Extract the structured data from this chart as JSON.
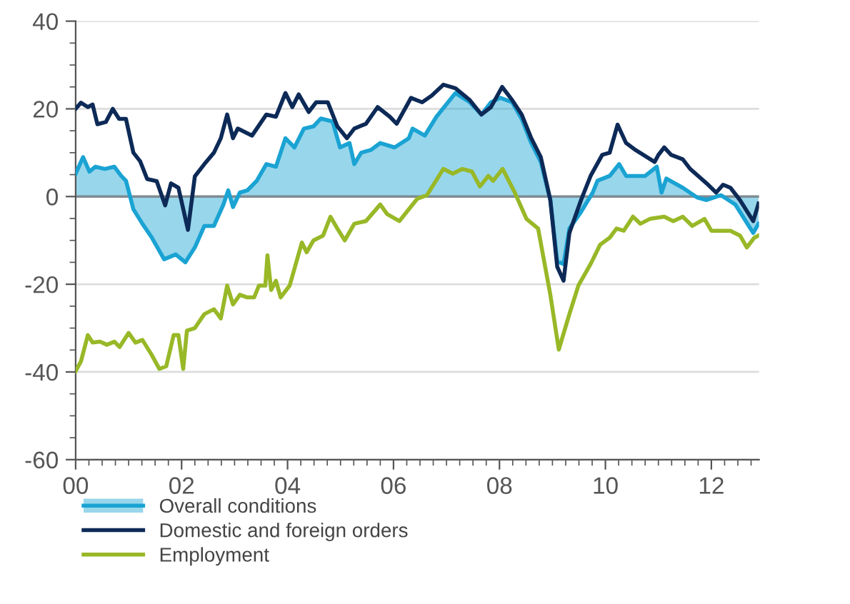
{
  "chart_data": {
    "type": "line",
    "xlim": [
      0,
      12.9
    ],
    "xticks": [
      {
        "value": 0,
        "label": "00"
      },
      {
        "value": 2,
        "label": "02"
      },
      {
        "value": 4,
        "label": "04"
      },
      {
        "value": 6,
        "label": "06"
      },
      {
        "value": 8,
        "label": "08"
      },
      {
        "value": 10,
        "label": "10"
      },
      {
        "value": 12,
        "label": "12"
      }
    ],
    "ylim": [
      -60,
      40
    ],
    "yticks": [
      -60,
      -40,
      -20,
      0,
      20,
      40
    ],
    "grid": "y",
    "legend": "bottom",
    "ref_lines": [
      {
        "axis": "y",
        "value": 0,
        "color": "#7f8c93"
      }
    ],
    "series": [
      {
        "name": "Overall conditions",
        "type": "area",
        "color": "#1aa3d3",
        "x": [
          0,
          0.14,
          0.26,
          0.37,
          0.55,
          0.73,
          0.86,
          0.95,
          1.09,
          1.26,
          1.44,
          1.67,
          1.89,
          2.07,
          2.25,
          2.43,
          2.61,
          2.79,
          2.88,
          2.97,
          3.1,
          3.24,
          3.42,
          3.6,
          3.78,
          3.96,
          4.13,
          4.31,
          4.49,
          4.63,
          4.85,
          4.99,
          5.17,
          5.26,
          5.39,
          5.57,
          5.75,
          6.02,
          6.29,
          6.36,
          6.59,
          6.81,
          7.17,
          7.44,
          7.66,
          7.84,
          8.02,
          8.24,
          8.42,
          8.6,
          8.78,
          8.96,
          9.09,
          9.21,
          9.32,
          9.54,
          9.76,
          9.85,
          10.08,
          10.26,
          10.39,
          10.75,
          10.97,
          11.06,
          11.15,
          11.46,
          11.73,
          11.91,
          12.18,
          12.45,
          12.79,
          12.89
        ],
        "values": [
          5.2,
          9,
          5.7,
          6.8,
          6.3,
          6.8,
          4.7,
          3.6,
          -2.9,
          -6.2,
          -9.4,
          -14.3,
          -13.2,
          -15,
          -11.6,
          -6.7,
          -6.7,
          -1.8,
          1.4,
          -2.4,
          0.9,
          1.4,
          3.6,
          7.4,
          6.8,
          13.3,
          11.2,
          15.5,
          16,
          17.8,
          17.1,
          11.2,
          12.2,
          7.4,
          10,
          10.6,
          12.2,
          11.2,
          13.3,
          15.5,
          13.9,
          18.2,
          23.6,
          21.5,
          18.7,
          21.5,
          22.5,
          21.5,
          17.7,
          12.2,
          7.9,
          -0.8,
          -14.8,
          -15.4,
          -7.3,
          -3.5,
          0.9,
          3.6,
          4.7,
          7.4,
          4.7,
          4.7,
          6.8,
          0.9,
          4.1,
          2,
          -0.2,
          -0.8,
          0.3,
          -1.8,
          -8.3,
          -6.2
        ]
      },
      {
        "name": "Domestic and foreign orders",
        "color": "#0d2a57",
        "x": [
          0,
          0.1,
          0.23,
          0.32,
          0.41,
          0.57,
          0.7,
          0.82,
          0.95,
          1.09,
          1.22,
          1.35,
          1.53,
          1.69,
          1.8,
          1.94,
          2.12,
          2.25,
          2.43,
          2.61,
          2.74,
          2.86,
          2.97,
          3.06,
          3.33,
          3.6,
          3.78,
          3.96,
          4.09,
          4.21,
          4.4,
          4.54,
          4.76,
          4.94,
          5.12,
          5.26,
          5.48,
          5.7,
          5.93,
          6.06,
          6.33,
          6.54,
          6.72,
          6.94,
          7.17,
          7.44,
          7.66,
          7.84,
          8.05,
          8.24,
          8.42,
          8.6,
          8.78,
          8.96,
          9.09,
          9.21,
          9.32,
          9.54,
          9.72,
          9.94,
          10.08,
          10.23,
          10.39,
          10.57,
          10.93,
          11.0,
          11.11,
          11.24,
          11.46,
          11.6,
          11.91,
          12.09,
          12.22,
          12.36,
          12.54,
          12.79,
          12.89
        ],
        "values": [
          20,
          21.4,
          20.4,
          21,
          16.5,
          17,
          20,
          17.7,
          17.7,
          10,
          8,
          4,
          3.5,
          -2,
          3,
          2,
          -7.6,
          4.6,
          7.4,
          10,
          13.3,
          18.7,
          13.3,
          15.5,
          13.9,
          18.7,
          18.2,
          23.6,
          20.4,
          23.3,
          19.3,
          21.5,
          21.5,
          16,
          13.3,
          15.5,
          16.6,
          20.4,
          18.2,
          16.6,
          22.5,
          21.5,
          23,
          25.5,
          24.7,
          22,
          18.7,
          20.4,
          25,
          22,
          18.7,
          13.3,
          9,
          -0.8,
          -16,
          -19.2,
          -8.3,
          -0.8,
          4.7,
          9.5,
          10,
          16.4,
          12.2,
          10.6,
          7.9,
          9.5,
          11.2,
          9.5,
          8.5,
          6.3,
          3,
          0.9,
          2.7,
          2,
          -0.8,
          -5.6,
          -1.6
        ]
      },
      {
        "name": "Employment",
        "color": "#98b827",
        "x": [
          0,
          0.1,
          0.23,
          0.32,
          0.46,
          0.59,
          0.73,
          0.83,
          1.0,
          1.13,
          1.26,
          1.43,
          1.58,
          1.71,
          1.85,
          1.94,
          2.03,
          2.1,
          2.25,
          2.43,
          2.61,
          2.74,
          2.86,
          2.97,
          3.1,
          3.24,
          3.37,
          3.46,
          3.58,
          3.62,
          3.69,
          3.78,
          3.87,
          4.04,
          4.27,
          4.36,
          4.49,
          4.67,
          4.81,
          4.94,
          5.08,
          5.26,
          5.48,
          5.75,
          5.88,
          6.11,
          6.29,
          6.45,
          6.63,
          6.77,
          6.94,
          7.12,
          7.3,
          7.48,
          7.63,
          7.79,
          7.88,
          8.06,
          8.29,
          8.51,
          8.73,
          8.96,
          9.12,
          9.32,
          9.49,
          9.72,
          9.9,
          10.08,
          10.21,
          10.345,
          10.52,
          10.66,
          10.84,
          11.11,
          11.28,
          11.46,
          11.64,
          11.87,
          12.0,
          12.36,
          12.54,
          12.67,
          12.81,
          12.89
        ],
        "values": [
          -39.8,
          -37.6,
          -31.6,
          -33.3,
          -33.1,
          -33.8,
          -33.1,
          -34.3,
          -31.1,
          -33.3,
          -32.7,
          -36,
          -39.3,
          -38.7,
          -31.6,
          -31.6,
          -39.3,
          -30.6,
          -30,
          -26.8,
          -25.7,
          -27.8,
          -20.3,
          -24.6,
          -22.4,
          -23,
          -23,
          -20.3,
          -20.3,
          -13.4,
          -21.3,
          -19.2,
          -23,
          -20.3,
          -10.5,
          -12.7,
          -10,
          -8.9,
          -4.6,
          -7.3,
          -10,
          -6.2,
          -5.6,
          -1.8,
          -4,
          -5.6,
          -2.9,
          -0.5,
          0.3,
          3,
          6.3,
          5.2,
          6.3,
          5.7,
          2.3,
          4.7,
          3.6,
          6.3,
          0.9,
          -5.1,
          -7.3,
          -22.4,
          -34.9,
          -26.8,
          -20.3,
          -15.4,
          -11,
          -9.4,
          -7.3,
          -7.8,
          -4.6,
          -6.2,
          -5.1,
          -4.6,
          -5.6,
          -4.6,
          -6.7,
          -5.1,
          -7.8,
          -7.8,
          -8.9,
          -11.6,
          -9.4,
          -8.9
        ]
      }
    ]
  }
}
